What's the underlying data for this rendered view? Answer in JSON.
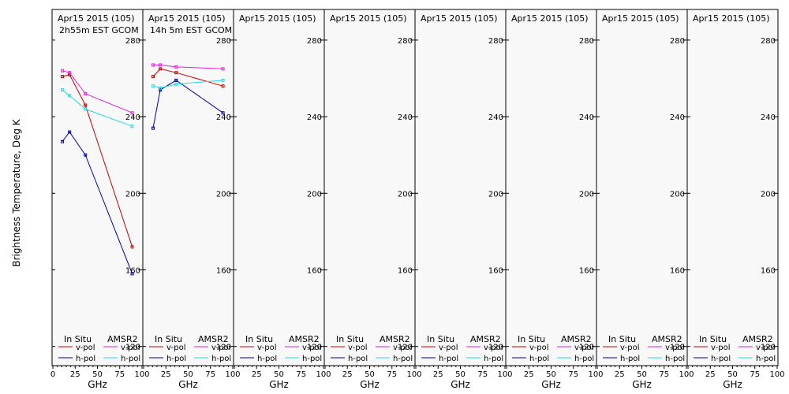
{
  "chart_data": {
    "type": "line",
    "ylabel": "Brightness Temperature, Deg K",
    "xlabel": "GHz",
    "ylim": [
      110,
      296
    ],
    "xlim": [
      0,
      100
    ],
    "yticks": [
      120,
      160,
      200,
      240,
      280
    ],
    "xticks": [
      0,
      25,
      50,
      75,
      100
    ],
    "legend": {
      "insitu_title": "In Situ",
      "amsr2_title": "AMSR2",
      "entries": [
        {
          "label": "v-pol",
          "source": "In Situ",
          "color": "#cc0000"
        },
        {
          "label": "v-pol",
          "source": "AMSR2",
          "color": "#dd22dd"
        },
        {
          "label": "h-pol",
          "source": "In Situ",
          "color": "#0000aa"
        },
        {
          "label": "h-pol",
          "source": "AMSR2",
          "color": "#22dddd"
        }
      ]
    },
    "panels": [
      {
        "title": "Apr15 2015 (105)",
        "subtitle": "2h55m EST GCOM",
        "series": [
          {
            "name": "In Situ v-pol",
            "color": "#cc0000",
            "x": [
              10.65,
              18.7,
              36.5,
              89.0
            ],
            "y": [
              261,
              262,
              246,
              172
            ]
          },
          {
            "name": "AMSR2 v-pol",
            "color": "#dd22dd",
            "x": [
              10.65,
              18.7,
              36.5,
              89.0
            ],
            "y": [
              264,
              263,
              252,
              242
            ]
          },
          {
            "name": "In Situ h-pol",
            "color": "#0000aa",
            "x": [
              10.65,
              18.7,
              36.5,
              89.0
            ],
            "y": [
              227,
              232,
              220,
              158
            ]
          },
          {
            "name": "AMSR2 h-pol",
            "color": "#22dddd",
            "x": [
              10.65,
              18.7,
              36.5,
              89.0
            ],
            "y": [
              254,
              251,
              244,
              235
            ]
          }
        ]
      },
      {
        "title": "Apr15 2015 (105)",
        "subtitle": "14h 5m EST GCOM",
        "series": [
          {
            "name": "In Situ v-pol",
            "color": "#cc0000",
            "x": [
              10.65,
              18.7,
              36.5,
              89.0
            ],
            "y": [
              261,
              265,
              263,
              256
            ]
          },
          {
            "name": "AMSR2 v-pol",
            "color": "#dd22dd",
            "x": [
              10.65,
              18.7,
              36.5,
              89.0
            ],
            "y": [
              267,
              267,
              266,
              265
            ]
          },
          {
            "name": "In Situ h-pol",
            "color": "#0000aa",
            "x": [
              10.65,
              18.7,
              36.5,
              89.0
            ],
            "y": [
              234,
              254,
              259,
              242
            ]
          },
          {
            "name": "AMSR2 h-pol",
            "color": "#22dddd",
            "x": [
              10.65,
              18.7,
              36.5,
              89.0
            ],
            "y": [
              256,
              255,
              257,
              259
            ]
          }
        ]
      },
      {
        "title": "Apr15 2015 (105)",
        "subtitle": "",
        "series": []
      },
      {
        "title": "Apr15 2015 (105)",
        "subtitle": "",
        "series": []
      },
      {
        "title": "Apr15 2015 (105)",
        "subtitle": "",
        "series": []
      },
      {
        "title": "Apr15 2015 (105)",
        "subtitle": "",
        "series": []
      },
      {
        "title": "Apr15 2015 (105)",
        "subtitle": "",
        "series": []
      },
      {
        "title": "Apr15 2015 (105)",
        "subtitle": "",
        "series": []
      }
    ]
  }
}
